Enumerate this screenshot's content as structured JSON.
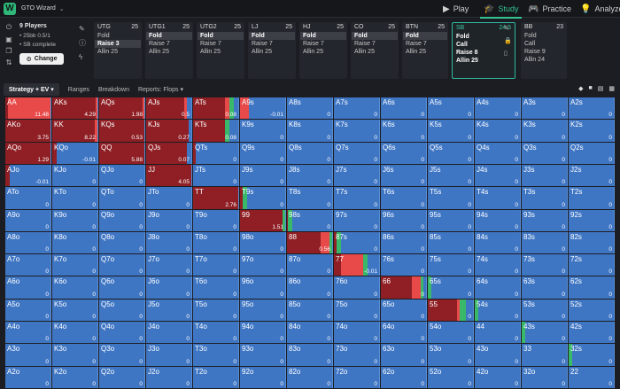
{
  "app": {
    "logo": "W",
    "title": "GTO Wizard"
  },
  "nav": [
    {
      "label": "Play",
      "icon": "play-icon",
      "glyph": "▶"
    },
    {
      "label": "Study",
      "icon": "study-icon",
      "glyph": "🎓"
    },
    {
      "label": "Practice",
      "icon": "gamepad-icon",
      "glyph": "🎮"
    },
    {
      "label": "Analyze",
      "icon": "bulb-icon",
      "glyph": "💡"
    }
  ],
  "info": {
    "players": "9 Players",
    "stacks": "• 25bb 0.5/1",
    "status": "• SB complete",
    "change_label": "Change"
  },
  "positions": [
    {
      "name": "UTG",
      "stack": "25",
      "actions": [
        "Fold",
        "Raise 3",
        "Allin 25"
      ],
      "selected": 1
    },
    {
      "name": "UTG1",
      "stack": "25",
      "actions": [
        "Fold",
        "Raise 7",
        "Allin 25"
      ],
      "selected": 0
    },
    {
      "name": "UTG2",
      "stack": "25",
      "actions": [
        "Fold",
        "Raise 7",
        "Allin 25"
      ],
      "selected": 0
    },
    {
      "name": "LJ",
      "stack": "25",
      "actions": [
        "Fold",
        "Raise 7",
        "Allin 25"
      ],
      "selected": 0
    },
    {
      "name": "HJ",
      "stack": "25",
      "actions": [
        "Fold",
        "Raise 7",
        "Allin 25"
      ],
      "selected": 0
    },
    {
      "name": "CO",
      "stack": "25",
      "actions": [
        "Fold",
        "Raise 7",
        "Allin 25"
      ],
      "selected": 0
    },
    {
      "name": "BTN",
      "stack": "25",
      "actions": [
        "Fold",
        "Raise 7",
        "Allin 25"
      ],
      "selected": 0
    },
    {
      "name": "SB",
      "stack": "24.5",
      "actions": [
        "Fold",
        "Call",
        "Raise 8",
        "Allin 25"
      ],
      "selected": -1
    },
    {
      "name": "BB",
      "stack": "23",
      "actions": [
        "Fold",
        "Call",
        "Raise 9",
        "Allin 24"
      ],
      "selected": -1
    }
  ],
  "tabs": [
    "Strategy + EV",
    "Ranges",
    "Breakdown",
    "Reports: Flops"
  ],
  "colors": {
    "fold": "#3f76c4",
    "call": "#38b868",
    "raise": "#8f1f24",
    "allin": "#e84a4a"
  },
  "grid": {
    "ranks": [
      "A",
      "K",
      "Q",
      "J",
      "T",
      "9",
      "8",
      "7",
      "6",
      "5",
      "4",
      "3",
      "2"
    ],
    "ev": [
      [
        "11.48",
        "4.29",
        "1.98",
        "0.5",
        "0.08",
        "-0.01",
        "0",
        "0",
        "0",
        "0",
        "0",
        "0",
        "0"
      ],
      [
        "3.75",
        "8.22",
        "0.53",
        "0.27",
        "0.08",
        "0",
        "0",
        "0",
        "0",
        "0",
        "0",
        "0",
        "0"
      ],
      [
        "1.29",
        "-0.01",
        "5.88",
        "0.07",
        "0",
        "0",
        "0",
        "0",
        "0",
        "0",
        "0",
        "0",
        "0"
      ],
      [
        "-0.01",
        "0",
        "0",
        "4.05",
        "0",
        "0",
        "0",
        "0",
        "0",
        "0",
        "0",
        "0",
        "0"
      ],
      [
        "0",
        "0",
        "0",
        "0",
        "2.76",
        "0",
        "0",
        "0",
        "0",
        "0",
        "0",
        "0",
        "0"
      ],
      [
        "0",
        "0",
        "0",
        "0",
        "0",
        "1.51",
        "0",
        "0",
        "0",
        "0",
        "0",
        "0",
        "0"
      ],
      [
        "0",
        "0",
        "0",
        "0",
        "0",
        "0",
        "0.56",
        "0",
        "0",
        "0",
        "0",
        "0",
        "0"
      ],
      [
        "0",
        "0",
        "0",
        "0",
        "0",
        "0",
        "0",
        "-0.01",
        "0",
        "0",
        "0",
        "0",
        "0"
      ],
      [
        "0",
        "0",
        "0",
        "0",
        "0",
        "0",
        "0",
        "0",
        "0",
        "0",
        "0",
        "0",
        "0"
      ],
      [
        "0",
        "0",
        "0",
        "0",
        "0",
        "0",
        "0",
        "0",
        "0",
        "0",
        "0",
        "0",
        "0"
      ],
      [
        "0",
        "0",
        "0",
        "0",
        "0",
        "0",
        "0",
        "0",
        "0",
        "0",
        "0",
        "0",
        "0"
      ],
      [
        "0",
        "0",
        "0",
        "0",
        "0",
        "0",
        "0",
        "0",
        "0",
        "0",
        "0",
        "0",
        "0"
      ],
      [
        "0",
        "0",
        "0",
        "0",
        "0",
        "0",
        "0",
        "0",
        "0",
        "0",
        "0",
        "0",
        "0"
      ]
    ],
    "mix": {
      "0,0": [
        0,
        0,
        0.05,
        0.95
      ],
      "0,1": [
        0,
        0,
        0.97,
        0.03
      ],
      "0,2": [
        0,
        0,
        0.97,
        0.03
      ],
      "0,3": [
        0.1,
        0,
        0.85,
        0.05
      ],
      "0,4": [
        0.1,
        0.1,
        0.7,
        0.1
      ],
      "0,5": [
        0.8,
        0,
        0,
        0.2
      ],
      "1,0": [
        0,
        0,
        1,
        0
      ],
      "1,1": [
        0,
        0,
        0.95,
        0.05
      ],
      "1,2": [
        0,
        0,
        1,
        0
      ],
      "1,3": [
        0.05,
        0,
        0.95,
        0
      ],
      "1,4": [
        0.2,
        0.1,
        0.7,
        0
      ],
      "2,0": [
        0,
        0,
        1,
        0
      ],
      "2,1": [
        0.9,
        0,
        0.1,
        0
      ],
      "2,2": [
        0,
        0,
        1,
        0
      ],
      "2,3": [
        0.1,
        0,
        0.9,
        0
      ],
      "2,4": [
        0.95,
        0,
        0.05,
        0
      ],
      "3,0": [
        0.9,
        0,
        0.1,
        0
      ],
      "3,3": [
        0,
        0,
        1,
        0
      ],
      "4,4": [
        0,
        0,
        1,
        0
      ],
      "4,5": [
        0.85,
        0.1,
        0.05,
        0
      ],
      "5,5": [
        0,
        0.05,
        0.95,
        0
      ],
      "5,6": [
        0.88,
        0.1,
        0.02,
        0
      ],
      "6,6": [
        0,
        0.05,
        0.75,
        0.2
      ],
      "6,7": [
        0.85,
        0.1,
        0.05,
        0
      ],
      "7,7": [
        0.25,
        0.1,
        0.15,
        0.5
      ],
      "8,8": [
        0.05,
        0.07,
        0.68,
        0.2
      ],
      "8,9": [
        0.92,
        0.08,
        0,
        0
      ],
      "9,9": [
        0.15,
        0.15,
        0.65,
        0.05
      ],
      "9,10": [
        0.92,
        0.08,
        0,
        0
      ],
      "10,11": [
        0.92,
        0.08,
        0,
        0
      ],
      "11,12": [
        0.92,
        0.08,
        0,
        0
      ]
    }
  }
}
